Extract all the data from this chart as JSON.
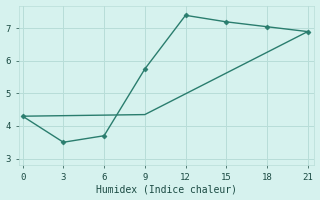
{
  "line1_x": [
    0,
    3,
    6,
    9,
    12,
    15,
    18,
    21
  ],
  "line1_y": [
    4.3,
    3.5,
    3.7,
    5.75,
    7.4,
    7.2,
    7.05,
    6.9
  ],
  "line2_x": [
    0,
    9,
    21
  ],
  "line2_y": [
    4.3,
    4.35,
    6.9
  ],
  "line_color": "#2a7d6e",
  "background_color": "#d6f2ee",
  "xlabel": "Humidex (Indice chaleur)",
  "xlim": [
    -0.3,
    21.5
  ],
  "ylim": [
    2.8,
    7.7
  ],
  "xticks": [
    0,
    3,
    6,
    9,
    12,
    15,
    18,
    21
  ],
  "yticks": [
    3,
    4,
    5,
    6,
    7
  ],
  "grid_color": "#b8ddd8",
  "marker": "D",
  "markersize": 2.5,
  "linewidth": 1.0
}
